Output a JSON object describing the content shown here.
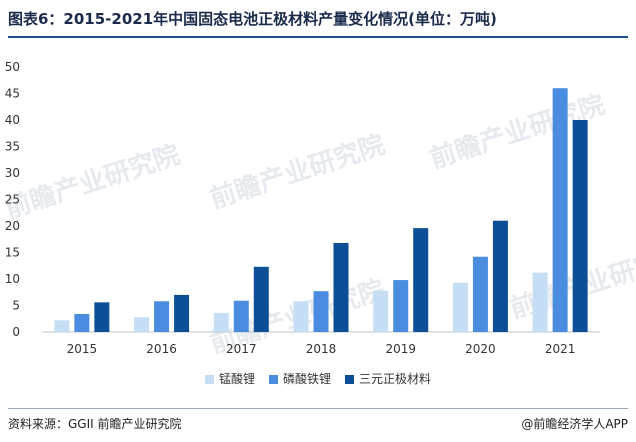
{
  "title": "图表6：2015-2021年中国固态电池正极材料产量变化情况(单位：万吨)",
  "footer": {
    "source": "资料来源：GGII 前瞻产业研究院",
    "brand": "@前瞻经济学人APP"
  },
  "watermark": "前瞻产业研究院",
  "chart_data": {
    "type": "bar",
    "categories": [
      "2015",
      "2016",
      "2017",
      "2018",
      "2019",
      "2020",
      "2021"
    ],
    "series": [
      {
        "name": "锰酸锂",
        "color": "#c6def3",
        "values": [
          2.2,
          2.8,
          3.6,
          5.8,
          7.8,
          9.3,
          11.2
        ]
      },
      {
        "name": "磷酸铁锂",
        "color": "#4a8de0",
        "values": [
          3.4,
          5.8,
          5.9,
          7.7,
          9.8,
          14.2,
          46.0
        ]
      },
      {
        "name": "三元正极材料",
        "color": "#0c4f96",
        "values": [
          5.6,
          7.0,
          12.3,
          16.8,
          19.6,
          21.0,
          40.0
        ]
      }
    ],
    "yticks": [
      0,
      5,
      10,
      15,
      20,
      25,
      30,
      35,
      40,
      45,
      50
    ],
    "ylim": [
      0,
      50
    ],
    "grid": false,
    "legend_position": "bottom"
  }
}
